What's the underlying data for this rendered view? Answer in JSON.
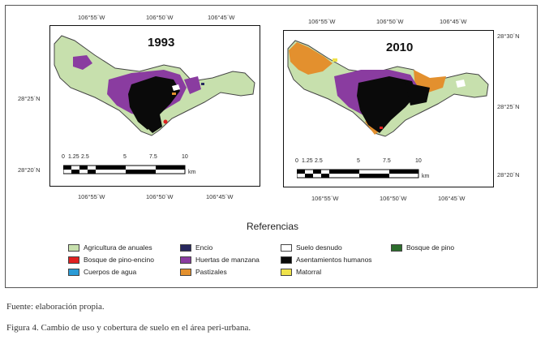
{
  "maps": [
    {
      "year": "1993",
      "top_lon": [
        "106°55´W",
        "106°50´W",
        "106°45´W"
      ],
      "bottom_lon": [
        "106°55´W",
        "106°50´W",
        "106°45´W"
      ],
      "left_lat": [
        "28°25´N",
        "28°20´N"
      ],
      "scale_labels": [
        "0",
        "1.25",
        "2.5",
        "5",
        "7.5",
        "10"
      ],
      "scale_unit": "km"
    },
    {
      "year": "2010",
      "top_lon": [
        "106°55´W",
        "106°50´W",
        "106°45´W"
      ],
      "bottom_lon": [
        "106°55´W",
        "106°50´W",
        "106°45´W"
      ],
      "right_lat": [
        "28°30´N",
        "28°25´N",
        "28°20´N"
      ],
      "scale_labels": [
        "0",
        "1.25",
        "2.5",
        "5",
        "7.5",
        "10"
      ],
      "scale_unit": "km"
    }
  ],
  "legend_title": "Referencias",
  "legend": [
    {
      "label": "Agricultura de anuales",
      "color": "#c7e0ad"
    },
    {
      "label": "Encio",
      "color": "#27275e"
    },
    {
      "label": "Suelo desnudo",
      "color": "#ffffff"
    },
    {
      "label": "Bosque de pino",
      "color": "#2d6e2d"
    },
    {
      "label": "Bosque de pino-encino",
      "color": "#e02020"
    },
    {
      "label": "Huertas de manzana",
      "color": "#8a3ca0"
    },
    {
      "label": "Asentamientos humanos",
      "color": "#0a0a0a"
    },
    {
      "label": "Cuerpos de agua",
      "color": "#2a9bd6"
    },
    {
      "label": "Pastizales",
      "color": "#e3902e"
    },
    {
      "label": "Matorral",
      "color": "#efe24a"
    }
  ],
  "source_note": "Fuente: elaboración propia.",
  "caption": "Figura 4. Cambio de uso y cobertura de suelo en el área peri-urbana."
}
